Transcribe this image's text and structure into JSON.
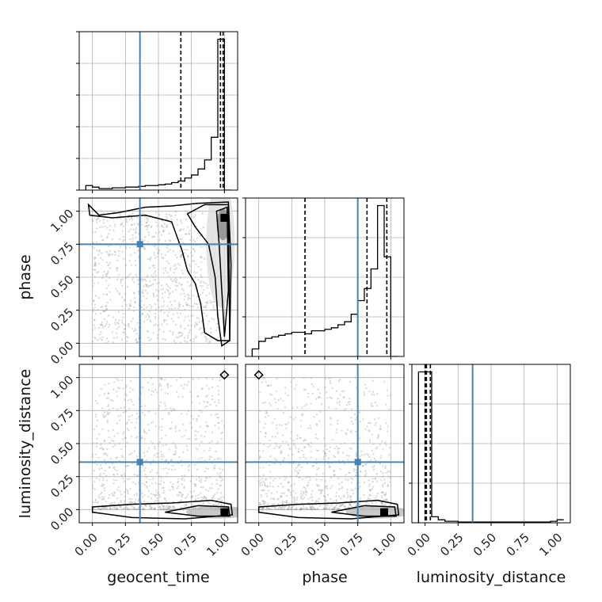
{
  "chart_data": {
    "type": "corner",
    "parameters": [
      "geocent_time",
      "phase",
      "luminosity_distance"
    ],
    "axis_labels": {
      "geocent_time": "geocent_time",
      "phase": "phase",
      "luminosity_distance": "luminosity_distance"
    },
    "range": [
      0,
      1
    ],
    "ticks": [
      0.0,
      0.25,
      0.5,
      0.75,
      1.0
    ],
    "tick_labels": [
      "0.00",
      "0.25",
      "0.50",
      "0.75",
      "1.00"
    ],
    "grid": true,
    "truths": {
      "geocent_time": 0.36,
      "phase": 0.75,
      "luminosity_distance": 0.36
    },
    "truth_color": "#4682b4",
    "contour_color": "#000000",
    "quantiles": {
      "geocent_time": [
        0.67,
        0.97,
        0.99
      ],
      "phase": [
        0.35,
        0.82,
        0.97
      ],
      "luminosity_distance": [
        0.0,
        0.01,
        0.04
      ]
    },
    "histograms": {
      "geocent_time": {
        "bin_edges": [
          -0.05,
          0.0,
          0.05,
          0.1,
          0.15,
          0.2,
          0.25,
          0.3,
          0.35,
          0.4,
          0.45,
          0.5,
          0.55,
          0.6,
          0.65,
          0.7,
          0.75,
          0.8,
          0.85,
          0.9,
          0.95,
          1.0,
          1.05
        ],
        "counts": [
          3,
          2,
          1,
          1,
          1.5,
          1.5,
          2,
          2,
          2.5,
          3,
          3,
          3.5,
          4,
          5,
          6,
          8,
          10,
          14,
          20,
          35,
          100,
          0
        ]
      },
      "phase": {
        "bin_edges": [
          -0.05,
          0.0,
          0.05,
          0.1,
          0.15,
          0.2,
          0.25,
          0.3,
          0.35,
          0.4,
          0.45,
          0.5,
          0.55,
          0.6,
          0.65,
          0.7,
          0.75,
          0.8,
          0.85,
          0.9,
          0.95,
          1.0,
          1.05
        ],
        "counts": [
          5,
          10,
          12,
          13,
          14,
          15,
          16,
          16,
          15,
          17,
          17,
          18,
          19,
          21,
          23,
          28,
          37,
          45,
          58,
          100,
          66,
          0
        ]
      },
      "luminosity_distance": {
        "bin_edges": [
          -0.05,
          0.0,
          0.05,
          0.1,
          0.15,
          0.2,
          0.25,
          0.3,
          0.35,
          0.4,
          0.45,
          0.5,
          0.55,
          0.6,
          0.65,
          0.7,
          0.75,
          0.8,
          0.85,
          0.9,
          0.95,
          1.0,
          1.05
        ],
        "counts": [
          100,
          100,
          4,
          2,
          1,
          1,
          0.5,
          0.5,
          0.5,
          0.5,
          0.5,
          0.5,
          0.5,
          0.5,
          0.5,
          0.5,
          0.5,
          0.5,
          0.5,
          0.5,
          1,
          2
        ]
      }
    },
    "contour_density": {
      "geocent_time_phase": "samples concentrated near geocent_time≈1, phase≈1; peak at (1.0, 0.95)",
      "geocent_time_luminosity_distance": "samples concentrated near luminosity_distance≈0; peak at (1.0, -0.02)",
      "phase_luminosity_distance": "samples concentrated near luminosity_distance≈0; peak at (0.95, -0.02)"
    }
  }
}
